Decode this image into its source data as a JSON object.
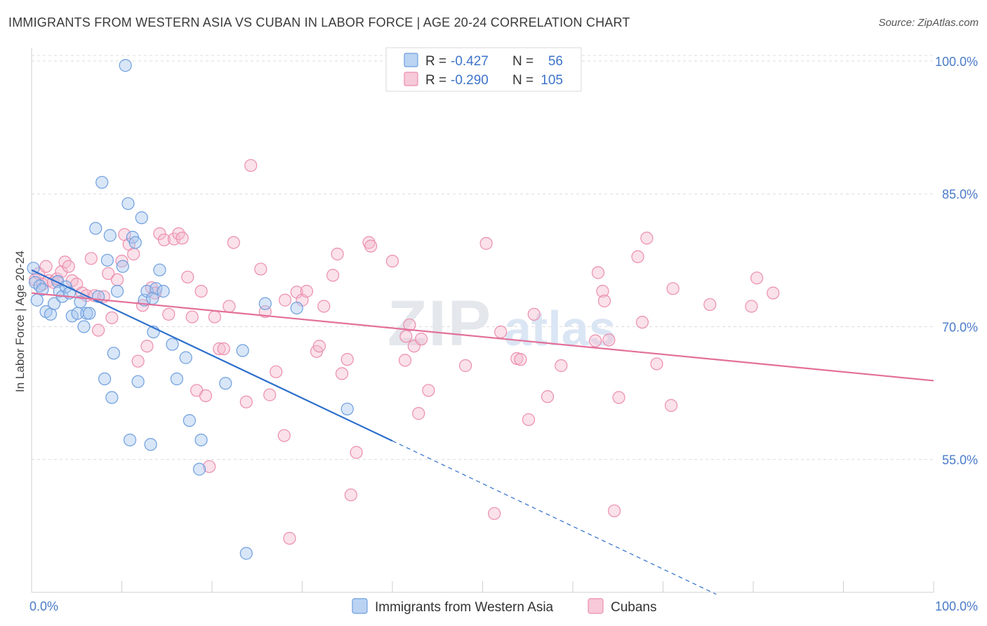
{
  "title": "IMMIGRANTS FROM WESTERN ASIA VS CUBAN IN LABOR FORCE | AGE 20-24 CORRELATION CHART",
  "source": "Source: ZipAtlas.com",
  "watermark": {
    "zip": "ZIP",
    "atlas": "atlas"
  },
  "colors": {
    "blue_fill": "#a9c8f0",
    "blue_stroke": "#6f9fde",
    "blue_line": "#2d6fcc",
    "pink_fill": "#f5bcd0",
    "pink_stroke": "#ec8eae",
    "pink_line": "#e3709a",
    "grid": "#dcdcdc",
    "axis_text": "#4a7bc8"
  },
  "legend": {
    "r_label": "R =",
    "n_label": "N =",
    "series": [
      {
        "r": "-0.427",
        "n": "56"
      },
      {
        "r": "-0.290",
        "n": "105"
      }
    ]
  },
  "chart_data": {
    "type": "scatter",
    "title": "IMMIGRANTS FROM WESTERN ASIA VS CUBAN IN LABOR FORCE | AGE 20-24 CORRELATION CHART",
    "xlabel": "",
    "ylabel": "In Labor Force | Age 20-24",
    "xlim": [
      0,
      100
    ],
    "ylim": [
      40,
      101.5
    ],
    "x_tick_labels": [
      "0.0%",
      "100.0%"
    ],
    "y_ticks": [
      55,
      70,
      85,
      100
    ],
    "y_tick_labels": [
      "55.0%",
      "70.0%",
      "85.0%",
      "100.0%"
    ],
    "grid": true,
    "legend_position": "top-center",
    "series": [
      {
        "name": "Immigrants from Western Asia",
        "color": "#a9c8f0",
        "trend": {
          "x0": 0,
          "y0": 76.4,
          "x1": 40.0,
          "y1": 57.1,
          "dashed_to_x": 75.9
        },
        "points": [
          [
            0.2,
            76.6
          ],
          [
            0.4,
            75.0
          ],
          [
            0.6,
            73.0
          ],
          [
            0.9,
            74.6
          ],
          [
            1.2,
            74.2
          ],
          [
            1.6,
            71.7
          ],
          [
            2.1,
            71.4
          ],
          [
            2.5,
            72.6
          ],
          [
            2.9,
            75.1
          ],
          [
            3.1,
            74.0
          ],
          [
            3.4,
            73.4
          ],
          [
            3.8,
            74.5
          ],
          [
            4.2,
            73.8
          ],
          [
            4.5,
            71.2
          ],
          [
            5.1,
            71.5
          ],
          [
            5.4,
            72.8
          ],
          [
            5.8,
            70.0
          ],
          [
            6.1,
            71.5
          ],
          [
            6.4,
            71.5
          ],
          [
            7.1,
            81.1
          ],
          [
            7.4,
            73.4
          ],
          [
            7.8,
            86.3
          ],
          [
            8.1,
            64.1
          ],
          [
            8.4,
            77.5
          ],
          [
            8.7,
            80.3
          ],
          [
            8.9,
            62.0
          ],
          [
            9.1,
            67.0
          ],
          [
            9.5,
            74.0
          ],
          [
            10.1,
            76.8
          ],
          [
            10.4,
            99.5
          ],
          [
            10.7,
            83.9
          ],
          [
            10.9,
            57.2
          ],
          [
            11.2,
            80.1
          ],
          [
            11.5,
            79.5
          ],
          [
            11.8,
            63.8
          ],
          [
            12.2,
            82.3
          ],
          [
            12.5,
            73.0
          ],
          [
            12.8,
            74.0
          ],
          [
            13.2,
            56.7
          ],
          [
            13.5,
            69.4
          ],
          [
            13.8,
            74.3
          ],
          [
            14.2,
            76.4
          ],
          [
            14.6,
            74.0
          ],
          [
            15.6,
            68.0
          ],
          [
            16.1,
            64.1
          ],
          [
            17.1,
            66.5
          ],
          [
            17.5,
            59.4
          ],
          [
            18.8,
            57.2
          ],
          [
            18.6,
            53.9
          ],
          [
            21.5,
            63.6
          ],
          [
            23.4,
            67.3
          ],
          [
            23.8,
            44.4
          ],
          [
            25.9,
            72.6
          ],
          [
            29.4,
            72.1
          ],
          [
            35.0,
            60.7
          ],
          [
            13.4,
            73.2
          ]
        ]
      },
      {
        "name": "Cubans",
        "color": "#f5bcd0",
        "trend": {
          "x0": 0,
          "y0": 73.8,
          "x1": 100,
          "y1": 63.9
        },
        "points": [
          [
            0.4,
            75.3
          ],
          [
            0.8,
            76.0
          ],
          [
            1.2,
            74.8
          ],
          [
            1.6,
            76.8
          ],
          [
            1.9,
            75.2
          ],
          [
            2.4,
            75.0
          ],
          [
            2.8,
            75.4
          ],
          [
            3.3,
            76.2
          ],
          [
            3.7,
            77.3
          ],
          [
            4.1,
            76.8
          ],
          [
            4.5,
            75.2
          ],
          [
            5.0,
            74.8
          ],
          [
            5.6,
            73.8
          ],
          [
            6.1,
            73.5
          ],
          [
            6.6,
            77.7
          ],
          [
            7.0,
            73.5
          ],
          [
            7.4,
            69.6
          ],
          [
            8.0,
            73.4
          ],
          [
            8.5,
            76.0
          ],
          [
            8.9,
            71.0
          ],
          [
            9.5,
            75.3
          ],
          [
            10.0,
            77.4
          ],
          [
            10.3,
            80.4
          ],
          [
            10.8,
            79.3
          ],
          [
            11.3,
            78.2
          ],
          [
            11.8,
            66.1
          ],
          [
            12.3,
            72.4
          ],
          [
            12.8,
            67.8
          ],
          [
            13.3,
            74.4
          ],
          [
            13.7,
            73.8
          ],
          [
            14.2,
            80.5
          ],
          [
            14.7,
            79.8
          ],
          [
            15.2,
            71.4
          ],
          [
            15.8,
            79.9
          ],
          [
            16.3,
            80.5
          ],
          [
            16.7,
            80.0
          ],
          [
            17.3,
            75.6
          ],
          [
            17.8,
            71.1
          ],
          [
            18.3,
            62.8
          ],
          [
            18.8,
            74.0
          ],
          [
            19.3,
            62.2
          ],
          [
            19.7,
            54.2
          ],
          [
            20.3,
            71.1
          ],
          [
            20.8,
            67.5
          ],
          [
            21.3,
            67.5
          ],
          [
            21.9,
            72.3
          ],
          [
            22.4,
            79.5
          ],
          [
            23.8,
            61.5
          ],
          [
            24.3,
            88.2
          ],
          [
            25.4,
            76.5
          ],
          [
            25.9,
            71.7
          ],
          [
            26.4,
            62.3
          ],
          [
            27.1,
            64.9
          ],
          [
            28.0,
            57.7
          ],
          [
            28.1,
            73.0
          ],
          [
            28.6,
            46.1
          ],
          [
            29.4,
            73.9
          ],
          [
            30.0,
            73.0
          ],
          [
            30.5,
            74.0
          ],
          [
            31.6,
            67.2
          ],
          [
            31.9,
            67.8
          ],
          [
            32.4,
            72.3
          ],
          [
            33.4,
            75.8
          ],
          [
            33.9,
            78.2
          ],
          [
            34.4,
            64.7
          ],
          [
            35.0,
            66.3
          ],
          [
            35.4,
            51.0
          ],
          [
            36.0,
            55.8
          ],
          [
            37.4,
            79.5
          ],
          [
            37.6,
            79.1
          ],
          [
            40.0,
            77.4
          ],
          [
            41.4,
            66.2
          ],
          [
            41.5,
            68.9
          ],
          [
            41.9,
            70.2
          ],
          [
            42.4,
            67.8
          ],
          [
            42.9,
            60.2
          ],
          [
            43.2,
            68.6
          ],
          [
            44.0,
            62.8
          ],
          [
            48.1,
            65.6
          ],
          [
            50.4,
            79.4
          ],
          [
            51.3,
            48.9
          ],
          [
            52.0,
            69.4
          ],
          [
            53.8,
            66.4
          ],
          [
            54.2,
            66.3
          ],
          [
            55.1,
            59.5
          ],
          [
            55.7,
            71.4
          ],
          [
            57.2,
            62.1
          ],
          [
            58.7,
            65.6
          ],
          [
            62.5,
            68.4
          ],
          [
            62.8,
            76.1
          ],
          [
            63.3,
            74.0
          ],
          [
            63.5,
            72.9
          ],
          [
            64.0,
            68.5
          ],
          [
            64.6,
            49.2
          ],
          [
            65.1,
            62.0
          ],
          [
            67.2,
            77.9
          ],
          [
            67.7,
            70.5
          ],
          [
            68.2,
            80.0
          ],
          [
            69.3,
            65.8
          ],
          [
            70.9,
            61.1
          ],
          [
            71.1,
            74.3
          ],
          [
            75.2,
            72.5
          ],
          [
            79.8,
            72.3
          ],
          [
            80.4,
            75.5
          ],
          [
            82.2,
            73.8
          ]
        ]
      }
    ]
  },
  "bottom_legend": [
    "Immigrants from Western Asia",
    "Cubans"
  ]
}
